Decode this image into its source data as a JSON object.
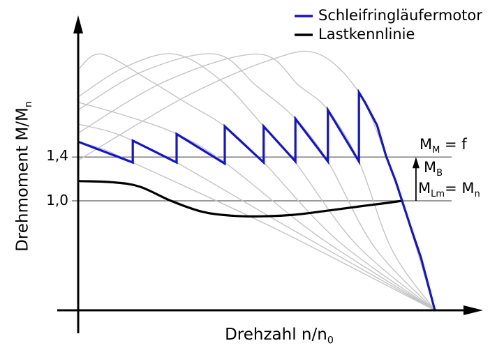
{
  "colors": {
    "motor": "#1414cc",
    "load": "#000000",
    "family": "#c4c4c4",
    "refline": "#7a7a7a",
    "axis": "#000000"
  },
  "legend": [
    {
      "label": "Schleifringläufermotor",
      "color": "#1414cc"
    },
    {
      "label": "Lastkennlinie",
      "color": "#000000"
    }
  ],
  "axes": {
    "ylabel_main": "Drehmoment M/M",
    "ylabel_sub": "n",
    "xlabel_main": "Drehzahl n/n",
    "xlabel_sub": "0",
    "yticks": [
      {
        "label": "1,4",
        "value": 1.4
      },
      {
        "label": "1,0",
        "value": 1.0
      }
    ]
  },
  "annotations": {
    "mm": {
      "pre": "M",
      "sub": "M",
      "post": " = f"
    },
    "mb": {
      "pre": "M",
      "sub": "B"
    },
    "mlm": {
      "pre": "M",
      "sub": "Lm",
      "mid": "= M",
      "sub2": "n"
    }
  },
  "chart_data": {
    "type": "line",
    "title": "",
    "xlabel": "Drehzahl n/n0",
    "ylabel": "Drehmoment M/Mn",
    "xlim": [
      0,
      1.1
    ],
    "ylim": [
      0,
      2.6
    ],
    "grid": false,
    "legend_position": "top-right",
    "ref_lines": [
      {
        "name": "M_M = f",
        "value": 1.4
      },
      {
        "name": "M_Lm = M_n",
        "value": 1.0
      }
    ],
    "mb_arrow": {
      "x": 0.947,
      "from": 1.0,
      "to": 1.4
    },
    "series": [
      {
        "name": "Schleifringläufermotor",
        "style": "sawtooth",
        "points": [
          [
            0.0,
            1.54
          ],
          [
            0.153,
            1.35
          ],
          [
            0.153,
            1.55
          ],
          [
            0.276,
            1.35
          ],
          [
            0.276,
            1.61
          ],
          [
            0.411,
            1.34
          ],
          [
            0.411,
            1.68
          ],
          [
            0.52,
            1.35
          ],
          [
            0.52,
            1.68
          ],
          [
            0.609,
            1.36
          ],
          [
            0.609,
            1.75
          ],
          [
            0.7,
            1.36
          ],
          [
            0.7,
            1.83
          ],
          [
            0.787,
            1.36
          ],
          [
            0.787,
            1.99
          ],
          [
            0.804,
            1.9
          ],
          [
            0.838,
            1.69
          ],
          [
            0.863,
            1.41
          ],
          [
            0.89,
            1.18
          ],
          [
            0.908,
            1.0
          ],
          [
            0.935,
            0.73
          ],
          [
            0.961,
            0.48
          ],
          [
            1.0,
            0.0
          ]
        ]
      },
      {
        "name": "Lastkennlinie",
        "style": "smooth",
        "points": [
          [
            0.0,
            1.18
          ],
          [
            0.094,
            1.17
          ],
          [
            0.172,
            1.13
          ],
          [
            0.26,
            1.0
          ],
          [
            0.348,
            0.9
          ],
          [
            0.427,
            0.865
          ],
          [
            0.505,
            0.858
          ],
          [
            0.603,
            0.872
          ],
          [
            0.7,
            0.91
          ],
          [
            0.789,
            0.949
          ],
          [
            0.867,
            0.981
          ],
          [
            0.908,
            1.0
          ]
        ]
      }
    ],
    "family_curves": [
      [
        [
          0,
          1.54
        ],
        [
          0.08,
          1.46
        ],
        [
          0.153,
          1.35
        ],
        [
          0.55,
          0.75
        ],
        [
          1,
          0
        ]
      ],
      [
        [
          0,
          1.7
        ],
        [
          0.08,
          1.64
        ],
        [
          0.153,
          1.55
        ],
        [
          0.276,
          1.35
        ],
        [
          0.62,
          0.7
        ],
        [
          1,
          0
        ]
      ],
      [
        [
          0,
          1.9
        ],
        [
          0.14,
          1.77
        ],
        [
          0.276,
          1.61
        ],
        [
          0.411,
          1.35
        ],
        [
          0.68,
          0.66
        ],
        [
          1,
          0
        ]
      ],
      [
        [
          0,
          2.2
        ],
        [
          0.065,
          2.34
        ],
        [
          0.2,
          2.1
        ],
        [
          0.3,
          1.9
        ],
        [
          0.411,
          1.68
        ],
        [
          0.52,
          1.35
        ],
        [
          0.73,
          0.63
        ],
        [
          1,
          0
        ]
      ],
      [
        [
          0,
          1.95
        ],
        [
          0.13,
          2.22
        ],
        [
          0.27,
          2.34
        ],
        [
          0.4,
          2.1
        ],
        [
          0.52,
          1.68
        ],
        [
          0.609,
          1.35
        ],
        [
          0.78,
          0.6
        ],
        [
          1,
          0
        ]
      ],
      [
        [
          0,
          1.83
        ],
        [
          0.18,
          2.18
        ],
        [
          0.384,
          2.34
        ],
        [
          0.5,
          2.05
        ],
        [
          0.609,
          1.75
        ],
        [
          0.7,
          1.36
        ],
        [
          0.83,
          0.58
        ],
        [
          1,
          0
        ]
      ],
      [
        [
          0,
          1.62
        ],
        [
          0.25,
          2.1
        ],
        [
          0.505,
          2.34
        ],
        [
          0.62,
          2.05
        ],
        [
          0.7,
          1.83
        ],
        [
          0.787,
          1.36
        ],
        [
          0.88,
          0.55
        ],
        [
          1,
          0
        ]
      ],
      [
        [
          0,
          1.37
        ],
        [
          0.3,
          1.95
        ],
        [
          0.55,
          2.3
        ],
        [
          0.675,
          2.34
        ],
        [
          0.787,
          1.99
        ],
        [
          0.863,
          1.41
        ],
        [
          0.908,
          1.0
        ],
        [
          1,
          0
        ]
      ]
    ]
  }
}
